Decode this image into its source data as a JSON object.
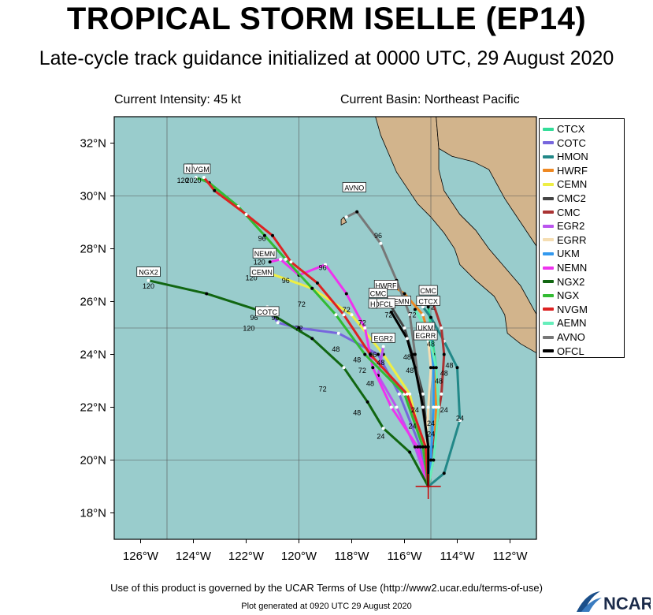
{
  "header": {
    "title": "TROPICAL STORM ISELLE (EP14)",
    "subtitle": "Late-cycle track guidance initialized at 0000 UTC, 29 August 2020",
    "current_intensity": "Current Intensity: 45 kt",
    "current_basin": "Current Basin: Northeast Pacific"
  },
  "map": {
    "lon_range": [
      -127.0,
      -111.0
    ],
    "lat_range": [
      17.0,
      33.0
    ],
    "lon_ticks": [
      "126°W",
      "124°W",
      "122°W",
      "120°W",
      "118°W",
      "116°W",
      "114°W",
      "112°W"
    ],
    "lat_ticks": [
      "32°N",
      "30°N",
      "28°N",
      "26°N",
      "24°N",
      "22°N",
      "20°N",
      "18°N"
    ],
    "ocean_color": "#99cccc",
    "land_color": "#d2b48c",
    "storm_position": {
      "lon": -115.1,
      "lat": 19.0
    }
  },
  "chart_data": {
    "type": "line",
    "title": "TROPICAL STORM ISELLE (EP14)",
    "xlabel": "",
    "ylabel": "",
    "xlim": [
      -127.0,
      -111.0
    ],
    "ylim": [
      17.0,
      33.0
    ],
    "series": [
      {
        "name": "CTCX",
        "color": "#33dd99",
        "points": [
          [
            -115.1,
            19.0
          ],
          [
            -115.0,
            20.0
          ],
          [
            -114.9,
            22.0
          ],
          [
            -114.8,
            23.5
          ],
          [
            -115.0,
            25.0
          ],
          [
            -115.1,
            25.8
          ]
        ]
      },
      {
        "name": "COTC",
        "color": "#7766dd",
        "points": [
          [
            -115.1,
            19.0
          ],
          [
            -115.4,
            20.5
          ],
          [
            -116.2,
            22.5
          ],
          [
            -117.0,
            24.0
          ],
          [
            -118.5,
            24.8
          ],
          [
            -120.0,
            25.0
          ],
          [
            -120.8,
            25.2
          ],
          [
            -121.0,
            25.5
          ],
          [
            -121.2,
            25.8
          ]
        ]
      },
      {
        "name": "HMON",
        "color": "#228888",
        "points": [
          [
            -115.1,
            19.0
          ],
          [
            -114.5,
            19.5
          ],
          [
            -113.9,
            21.5
          ],
          [
            -114.0,
            23.5
          ],
          [
            -114.5,
            24.5
          ],
          [
            -115.0,
            25.4
          ],
          [
            -115.3,
            25.8
          ]
        ]
      },
      {
        "name": "HWRF",
        "color": "#ee8822",
        "points": [
          [
            -115.1,
            19.0
          ],
          [
            -114.9,
            20.0
          ],
          [
            -114.8,
            22.0
          ],
          [
            -114.9,
            24.0
          ],
          [
            -115.3,
            25.5
          ],
          [
            -116.0,
            26.3
          ],
          [
            -116.3,
            26.5
          ]
        ]
      },
      {
        "name": "CEMN",
        "color": "#eeee44",
        "points": [
          [
            -115.1,
            19.0
          ],
          [
            -115.3,
            20.5
          ],
          [
            -115.8,
            22.5
          ],
          [
            -116.8,
            24.0
          ],
          [
            -118.0,
            25.5
          ],
          [
            -119.5,
            26.5
          ],
          [
            -121.2,
            27.1
          ]
        ]
      },
      {
        "name": "CMC2",
        "color": "#444444",
        "points": [
          [
            -115.1,
            19.0
          ],
          [
            -115.1,
            20.5
          ],
          [
            -115.3,
            22.5
          ],
          [
            -115.7,
            24.0
          ],
          [
            -116.0,
            25.0
          ],
          [
            -116.5,
            25.8
          ]
        ]
      },
      {
        "name": "CMC",
        "color": "#aa3333",
        "points": [
          [
            -115.1,
            19.0
          ],
          [
            -114.9,
            20.5
          ],
          [
            -114.6,
            22.5
          ],
          [
            -114.5,
            24.0
          ],
          [
            -114.6,
            25.0
          ],
          [
            -114.9,
            25.9
          ]
        ]
      },
      {
        "name": "EGR2",
        "color": "#bb55ee",
        "points": [
          [
            -115.1,
            19.0
          ],
          [
            -115.6,
            20.5
          ],
          [
            -116.3,
            22.0
          ],
          [
            -117.0,
            23.2
          ],
          [
            -116.8,
            24.3
          ]
        ]
      },
      {
        "name": "EGRR",
        "color": "#f5deb3",
        "points": [
          [
            -115.1,
            19.0
          ],
          [
            -115.2,
            20.0
          ],
          [
            -115.1,
            22.0
          ],
          [
            -115.0,
            23.5
          ],
          [
            -115.1,
            24.5
          ]
        ]
      },
      {
        "name": "UKM",
        "color": "#3399ee",
        "points": [
          [
            -115.1,
            19.0
          ],
          [
            -115.0,
            20.0
          ],
          [
            -114.9,
            22.0
          ],
          [
            -114.9,
            23.5
          ],
          [
            -115.0,
            24.6
          ]
        ]
      },
      {
        "name": "NEMN",
        "color": "#ee33ee",
        "points": [
          [
            -115.1,
            19.0
          ],
          [
            -115.5,
            20.5
          ],
          [
            -116.5,
            22.0
          ],
          [
            -117.2,
            23.5
          ],
          [
            -117.5,
            25.0
          ],
          [
            -118.2,
            26.3
          ],
          [
            -119.0,
            27.4
          ],
          [
            -120.0,
            27.0
          ],
          [
            -120.7,
            27.6
          ],
          [
            -121.1,
            27.5
          ]
        ]
      },
      {
        "name": "NGX2",
        "color": "#116611",
        "points": [
          [
            -115.1,
            19.0
          ],
          [
            -115.8,
            20.3
          ],
          [
            -116.8,
            21.2
          ],
          [
            -117.4,
            22.2
          ],
          [
            -118.3,
            23.5
          ],
          [
            -119.5,
            24.6
          ],
          [
            -121.0,
            25.5
          ],
          [
            -123.5,
            26.3
          ],
          [
            -125.7,
            26.8
          ]
        ]
      },
      {
        "name": "NGX",
        "color": "#33bb33",
        "points": [
          [
            -115.1,
            19.0
          ],
          [
            -115.3,
            20.5
          ],
          [
            -116.0,
            22.5
          ],
          [
            -117.5,
            24.0
          ],
          [
            -118.6,
            25.5
          ],
          [
            -119.5,
            26.5
          ],
          [
            -120.5,
            27.6
          ],
          [
            -121.3,
            28.5
          ],
          [
            -122.3,
            29.6
          ],
          [
            -123.4,
            30.5
          ],
          [
            -123.9,
            30.7
          ]
        ]
      },
      {
        "name": "NVGM",
        "color": "#dd2222",
        "points": [
          [
            -115.1,
            19.0
          ],
          [
            -115.2,
            20.5
          ],
          [
            -115.9,
            22.5
          ],
          [
            -117.3,
            24.0
          ],
          [
            -118.3,
            25.5
          ],
          [
            -119.3,
            26.7
          ],
          [
            -120.3,
            27.5
          ],
          [
            -121.0,
            28.5
          ],
          [
            -122.0,
            29.3
          ],
          [
            -123.2,
            30.2
          ],
          [
            -123.6,
            30.7
          ]
        ]
      },
      {
        "name": "AEMN",
        "color": "#66eebb",
        "points": [
          [
            -115.1,
            19.0
          ],
          [
            -114.9,
            20.0
          ],
          [
            -114.7,
            22.0
          ],
          [
            -114.8,
            23.5
          ],
          [
            -115.1,
            24.8
          ],
          [
            -115.6,
            25.7
          ]
        ]
      },
      {
        "name": "AVNO",
        "color": "#777777",
        "points": [
          [
            -115.1,
            19.0
          ],
          [
            -115.1,
            20.5
          ],
          [
            -115.4,
            22.5
          ],
          [
            -115.6,
            24.0
          ],
          [
            -115.8,
            25.5
          ],
          [
            -116.3,
            26.8
          ],
          [
            -116.9,
            28.2
          ],
          [
            -117.8,
            29.4
          ],
          [
            -118.2,
            29.2
          ]
        ]
      },
      {
        "name": "OFCL",
        "color": "#000000",
        "points": [
          [
            -115.1,
            19.0
          ],
          [
            -115.1,
            20.5
          ],
          [
            -115.3,
            22.0
          ],
          [
            -115.6,
            23.5
          ],
          [
            -115.9,
            24.6
          ],
          [
            -116.5,
            25.6
          ]
        ]
      }
    ],
    "labels": [
      {
        "text": "NVGM",
        "lon": -123.8,
        "lat": 31.0,
        "boxed": true
      },
      {
        "text": "N",
        "lon": -124.2,
        "lat": 31.0,
        "boxed": true
      },
      {
        "text": "AVNO",
        "lon": -117.9,
        "lat": 30.3,
        "boxed": true
      },
      {
        "text": "NGX2",
        "lon": -125.7,
        "lat": 27.1,
        "boxed": true
      },
      {
        "text": "NEMN",
        "lon": -121.3,
        "lat": 27.8,
        "boxed": true
      },
      {
        "text": "CEMN",
        "lon": -121.4,
        "lat": 27.1,
        "boxed": true
      },
      {
        "text": "COTC",
        "lon": -121.2,
        "lat": 25.6,
        "boxed": true
      },
      {
        "text": "HWRF",
        "lon": -116.7,
        "lat": 26.6,
        "boxed": true
      },
      {
        "text": "CMC",
        "lon": -117.0,
        "lat": 26.3,
        "boxed": true
      },
      {
        "text": "AEMN",
        "lon": -116.2,
        "lat": 26.0,
        "boxed": true
      },
      {
        "text": "OFCL",
        "lon": -116.8,
        "lat": 25.9,
        "boxed": true
      },
      {
        "text": "H",
        "lon": -117.2,
        "lat": 25.9,
        "boxed": true
      },
      {
        "text": "CMC",
        "lon": -115.1,
        "lat": 26.4,
        "boxed": true
      },
      {
        "text": "CTCX",
        "lon": -115.1,
        "lat": 26.0,
        "boxed": true
      },
      {
        "text": "EGR2",
        "lon": -116.8,
        "lat": 24.6,
        "boxed": true
      },
      {
        "text": "UKM",
        "lon": -115.2,
        "lat": 25.0,
        "boxed": true
      },
      {
        "text": "EGRR",
        "lon": -115.2,
        "lat": 24.7,
        "boxed": true
      }
    ],
    "hour_labels": [
      {
        "text": "120",
        "lon": -124.4,
        "lat": 30.5
      },
      {
        "text": "2020",
        "lon": -124.0,
        "lat": 30.5
      },
      {
        "text": "96",
        "lon": -121.4,
        "lat": 28.3
      },
      {
        "text": "96",
        "lon": -117.0,
        "lat": 28.4
      },
      {
        "text": "120",
        "lon": -121.5,
        "lat": 27.4
      },
      {
        "text": "120",
        "lon": -121.8,
        "lat": 26.8
      },
      {
        "text": "96",
        "lon": -120.5,
        "lat": 26.7
      },
      {
        "text": "96",
        "lon": -119.1,
        "lat": 27.2
      },
      {
        "text": "120",
        "lon": -125.7,
        "lat": 26.5
      },
      {
        "text": "72",
        "lon": -119.9,
        "lat": 25.8
      },
      {
        "text": "72",
        "lon": -118.2,
        "lat": 25.6
      },
      {
        "text": "72",
        "lon": -117.6,
        "lat": 25.1
      },
      {
        "text": "96",
        "lon": -121.7,
        "lat": 25.3
      },
      {
        "text": "96",
        "lon": -120.9,
        "lat": 25.3
      },
      {
        "text": "120",
        "lon": -121.9,
        "lat": 24.9
      },
      {
        "text": "72",
        "lon": -120.0,
        "lat": 24.9
      },
      {
        "text": "48",
        "lon": -118.6,
        "lat": 24.1
      },
      {
        "text": "72",
        "lon": -116.6,
        "lat": 25.4
      },
      {
        "text": "72",
        "lon": -115.7,
        "lat": 25.4
      },
      {
        "text": "72",
        "lon": -115.0,
        "lat": 25.7
      },
      {
        "text": "96",
        "lon": -117.2,
        "lat": 23.9
      },
      {
        "text": "48",
        "lon": -117.8,
        "lat": 23.7
      },
      {
        "text": "48",
        "lon": -116.9,
        "lat": 23.6
      },
      {
        "text": "48",
        "lon": -115.9,
        "lat": 23.8
      },
      {
        "text": "48",
        "lon": -115.8,
        "lat": 23.3
      },
      {
        "text": "72",
        "lon": -117.6,
        "lat": 23.3
      },
      {
        "text": "48",
        "lon": -117.3,
        "lat": 22.8
      },
      {
        "text": "48",
        "lon": -115.0,
        "lat": 24.3
      },
      {
        "text": "48",
        "lon": -114.5,
        "lat": 23.2
      },
      {
        "text": "48",
        "lon": -114.7,
        "lat": 22.9
      },
      {
        "text": "48",
        "lon": -114.3,
        "lat": 23.5
      },
      {
        "text": "72",
        "lon": -119.1,
        "lat": 22.6
      },
      {
        "text": "48",
        "lon": -117.8,
        "lat": 21.7
      },
      {
        "text": "24",
        "lon": -115.6,
        "lat": 21.8
      },
      {
        "text": "24",
        "lon": -115.0,
        "lat": 21.3
      },
      {
        "text": "24",
        "lon": -114.5,
        "lat": 21.8
      },
      {
        "text": "24",
        "lon": -115.7,
        "lat": 21.2
      },
      {
        "text": "24",
        "lon": -113.9,
        "lat": 21.5
      },
      {
        "text": "24",
        "lon": -116.9,
        "lat": 20.8
      },
      {
        "text": "24",
        "lon": -115.0,
        "lat": 20.9
      }
    ]
  },
  "legend": [
    "CTCX",
    "COTC",
    "HMON",
    "HWRF",
    "CEMN",
    "CMC2",
    "CMC",
    "EGR2",
    "EGRR",
    "UKM",
    "NEMN",
    "NGX2",
    "NGX",
    "NVGM",
    "AEMN",
    "AVNO",
    "OFCL"
  ],
  "footer": {
    "terms": "Use of this product is governed by the UCAR Terms of Use (http://www2.ucar.edu/terms-of-use)",
    "generated": "Plot generated at 0920 UTC   29 August 2020",
    "logo_text": "NCAR"
  }
}
